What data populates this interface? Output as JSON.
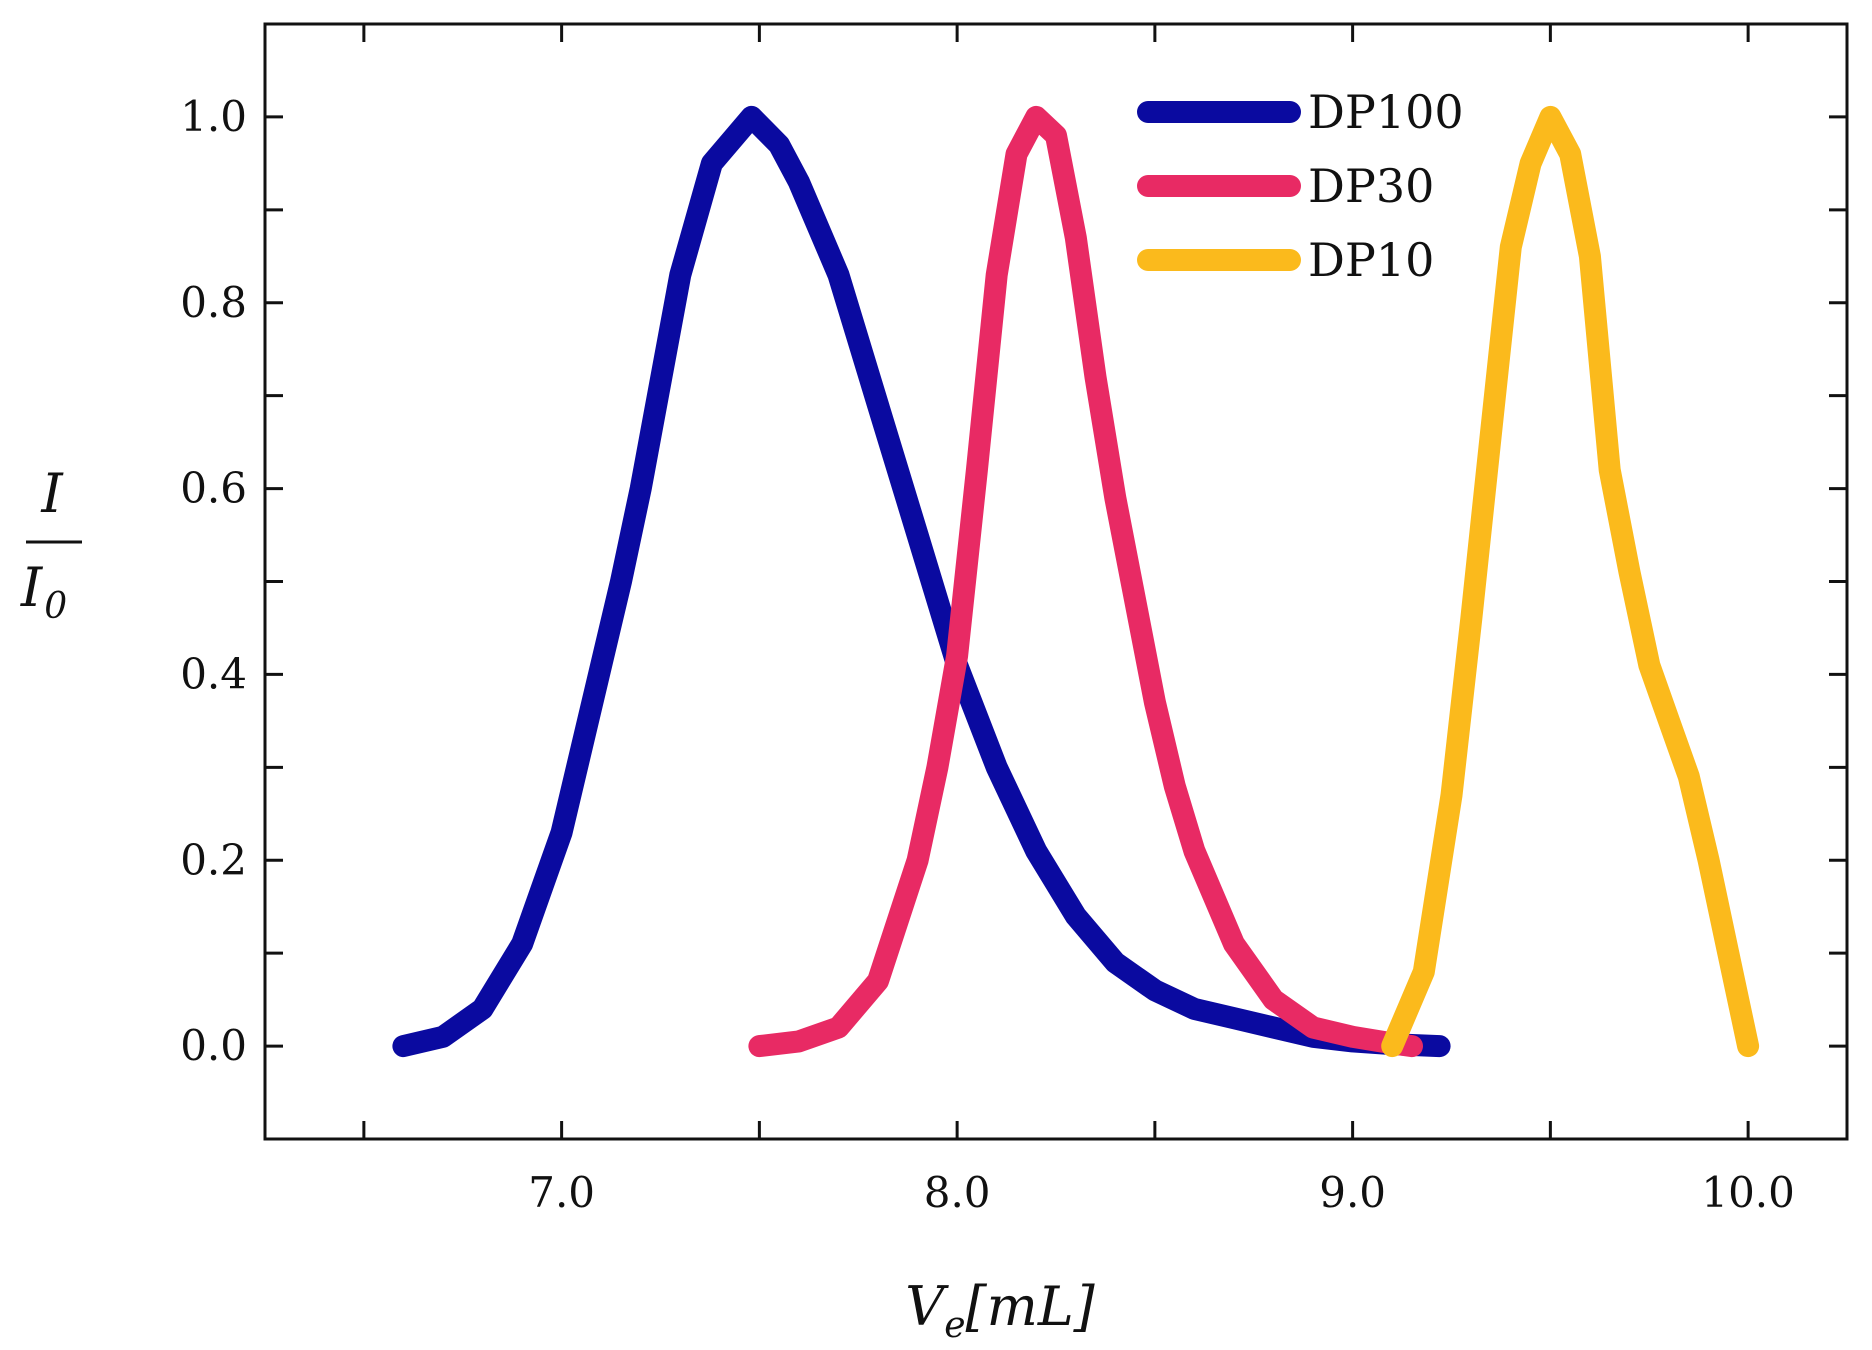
{
  "chart_data": {
    "type": "line",
    "title": "",
    "xlabel": {
      "main": "V",
      "sub": "e",
      "unit": "[mL]"
    },
    "ylabel": {
      "numerator": "I",
      "denominator": "I",
      "denominator_sub": "0"
    },
    "xlim": [
      6.25,
      10.25
    ],
    "ylim": [
      -0.1,
      1.1
    ],
    "x_ticks": [
      {
        "value": 7.0,
        "label": "7.0"
      },
      {
        "value": 8.0,
        "label": "8.0"
      },
      {
        "value": 9.0,
        "label": "9.0"
      },
      {
        "value": 10.0,
        "label": "10.0"
      }
    ],
    "x_minor_ticks": [
      6.5,
      7.0,
      7.5,
      8.0,
      8.5,
      9.0,
      9.5,
      10.0
    ],
    "y_ticks": [
      {
        "value": 0.0,
        "label": "0.0"
      },
      {
        "value": 0.2,
        "label": "0.2"
      },
      {
        "value": 0.4,
        "label": "0.4"
      },
      {
        "value": 0.6,
        "label": "0.6"
      },
      {
        "value": 0.8,
        "label": "0.8"
      },
      {
        "value": 1.0,
        "label": "1.0"
      }
    ],
    "y_minor_ticks": [
      0.1,
      0.3,
      0.5,
      0.7,
      0.9
    ],
    "legend_position": "top-right",
    "grid": false,
    "series": [
      {
        "name": "DP100",
        "color": "#0a0aa0",
        "x": [
          6.6,
          6.7,
          6.8,
          6.9,
          7.0,
          7.1,
          7.15,
          7.2,
          7.3,
          7.38,
          7.48,
          7.55,
          7.6,
          7.7,
          7.8,
          7.9,
          8.0,
          8.1,
          8.2,
          8.3,
          8.4,
          8.5,
          8.6,
          8.7,
          8.8,
          8.9,
          9.0,
          9.1,
          9.22
        ],
        "y": [
          0.0,
          0.01,
          0.04,
          0.11,
          0.23,
          0.41,
          0.5,
          0.6,
          0.83,
          0.95,
          1.0,
          0.97,
          0.93,
          0.83,
          0.69,
          0.55,
          0.41,
          0.3,
          0.21,
          0.14,
          0.09,
          0.06,
          0.04,
          0.03,
          0.02,
          0.01,
          0.005,
          0.002,
          0.0
        ]
      },
      {
        "name": "DP30",
        "color": "#e82a64",
        "x": [
          7.5,
          7.6,
          7.7,
          7.8,
          7.9,
          7.95,
          8.0,
          8.05,
          8.1,
          8.15,
          8.2,
          8.25,
          8.3,
          8.35,
          8.4,
          8.45,
          8.5,
          8.55,
          8.6,
          8.7,
          8.8,
          8.9,
          9.0,
          9.1,
          9.15
        ],
        "y": [
          0.0,
          0.005,
          0.02,
          0.07,
          0.2,
          0.3,
          0.42,
          0.62,
          0.83,
          0.96,
          1.0,
          0.98,
          0.87,
          0.72,
          0.59,
          0.48,
          0.37,
          0.28,
          0.21,
          0.11,
          0.05,
          0.02,
          0.01,
          0.003,
          0.0
        ]
      },
      {
        "name": "DP10",
        "color": "#fbba1c",
        "x": [
          9.1,
          9.18,
          9.25,
          9.3,
          9.35,
          9.4,
          9.45,
          9.5,
          9.55,
          9.6,
          9.65,
          9.7,
          9.75,
          9.8,
          9.85,
          9.9,
          9.95,
          10.0
        ],
        "y": [
          0.0,
          0.08,
          0.27,
          0.46,
          0.66,
          0.86,
          0.95,
          1.0,
          0.96,
          0.85,
          0.62,
          0.51,
          0.41,
          0.35,
          0.29,
          0.2,
          0.1,
          0.0
        ]
      }
    ]
  }
}
